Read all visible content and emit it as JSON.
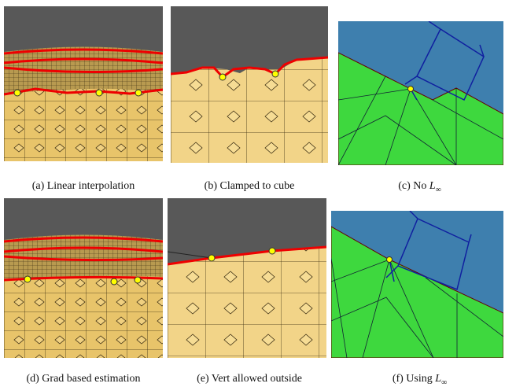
{
  "captions": [
    {
      "text": "(a) Linear interpolation"
    },
    {
      "text": "(b) Clamped to cube"
    },
    {
      "text": "(c) No ",
      "math": "L",
      "subscript": "∞"
    },
    {
      "text": "(d) Grad based estimation"
    },
    {
      "text": "(e) Vert allowed outside"
    },
    {
      "text": "(f) Using ",
      "math": "L",
      "subscript": "∞"
    }
  ]
}
